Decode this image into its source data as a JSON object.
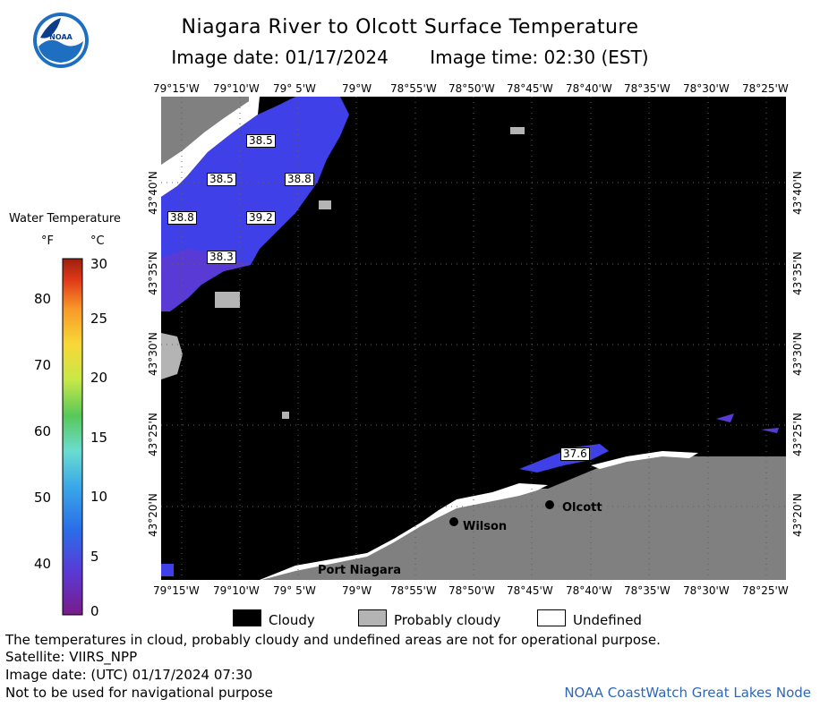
{
  "title": "Niagara River to Olcott Surface Temperature",
  "image_date_label": "Image date: 01/17/2024",
  "image_time_label": "Image time: 02:30 (EST)",
  "longitude_ticks": [
    "79°15'W",
    "79°10'W",
    "79° 5'W",
    "79°W",
    "78°55'W",
    "78°50'W",
    "78°45'W",
    "78°40'W",
    "78°35'W",
    "78°30'W",
    "78°25'W"
  ],
  "latitude_ticks": [
    "43°40'N",
    "43°35'N",
    "43°30'N",
    "43°25'N",
    "43°20'N"
  ],
  "legend": {
    "title": "Water Temperature",
    "unit_f": "°F",
    "unit_c": "°C",
    "f_labels": [
      "80",
      "70",
      "60",
      "50",
      "40"
    ],
    "c_labels": [
      "30",
      "25",
      "20",
      "15",
      "10",
      "5",
      "0"
    ]
  },
  "key": [
    {
      "label": "Cloudy",
      "color": "#000000"
    },
    {
      "label": "Probably cloudy",
      "color": "#b4b4b4"
    },
    {
      "label": "Undefined",
      "color": "#ffffff"
    }
  ],
  "places": [
    "Olcott",
    "Wilson",
    "Port Niagara"
  ],
  "temperature_labels": [
    "38.5",
    "38.5",
    "38.8",
    "38.8",
    "39.2",
    "38.3",
    "37.6"
  ],
  "footer": {
    "disclaimer": "The temperatures in cloud, probably cloudy and undefined areas are not for operational purpose.",
    "satellite": "Satellite: VIIRS_NPP",
    "utc_date": "Image date: (UTC) 01/17/2024  07:30",
    "nav_warning": "Not to be used for navigational purpose"
  },
  "credit": "NOAA CoastWatch Great Lakes Node",
  "colors": {
    "land": "#808080",
    "cloud": "#000000",
    "water_cold": "#4040e8",
    "credit": "#2d67b8"
  }
}
